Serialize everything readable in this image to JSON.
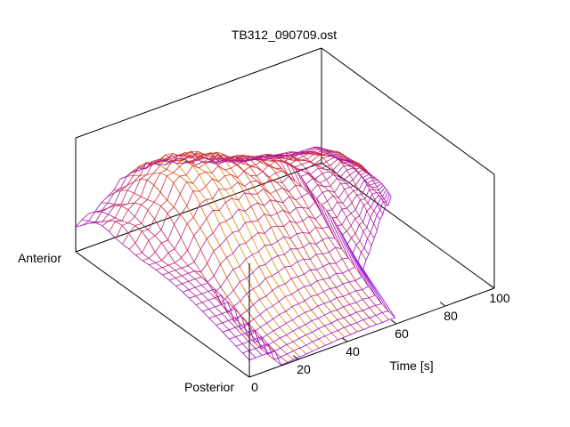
{
  "chart_data": {
    "type": "surface",
    "title": "TB312_090709.ost",
    "xlabel": "Time [s]",
    "xlim": [
      0,
      100
    ],
    "xticks": [
      0,
      20,
      40,
      60,
      80,
      100
    ],
    "y_labels": {
      "start": "Anterior",
      "end": "Posterior"
    },
    "colormap": [
      "#000000",
      "#7f00ff",
      "#c02070",
      "#e04a00",
      "#ffff00"
    ],
    "surface": {
      "time_s": [
        0,
        10,
        20,
        30,
        40,
        50,
        60,
        70,
        80,
        90,
        100
      ],
      "ridge_height": [
        0.4,
        0.55,
        0.85,
        0.88,
        0.82,
        0.72,
        0.66,
        0.62,
        0.64,
        0.48,
        0.12
      ]
    }
  }
}
